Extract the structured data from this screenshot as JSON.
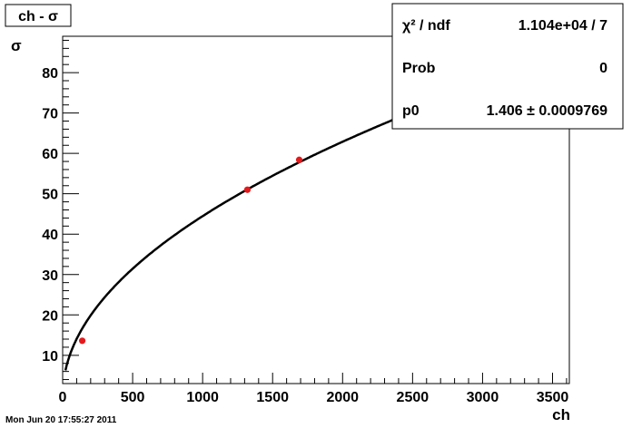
{
  "chart_data": {
    "type": "scatter",
    "title": "ch - σ",
    "xlabel": "ch",
    "ylabel": "σ",
    "xlim": [
      0,
      3620
    ],
    "ylim": [
      3,
      89
    ],
    "x_ticks": [
      0,
      500,
      1000,
      1500,
      2000,
      2500,
      3000,
      3500
    ],
    "y_ticks": [
      10,
      20,
      30,
      40,
      50,
      60,
      70,
      80
    ],
    "grid": false,
    "series": [
      {
        "kind": "points",
        "color": "#e41a1c",
        "x": [
          140,
          1320,
          1690
        ],
        "y": [
          13.6,
          51,
          58.4
        ]
      },
      {
        "kind": "fit",
        "function": "p0*sqrt(x)",
        "p0": 1.406,
        "x_range": [
          20,
          3600
        ],
        "color": "#000000"
      }
    ],
    "stats_box": {
      "placement": "top-right",
      "rows": [
        {
          "label": "χ² / ndf",
          "value": "1.104e+04 / 7"
        },
        {
          "label": "Prob",
          "value": "0"
        },
        {
          "label": "p0",
          "value": "1.406 ± 0.0009769"
        }
      ]
    }
  },
  "footer": {
    "timestamp": "Mon Jun 20 17:55:27 2011"
  }
}
